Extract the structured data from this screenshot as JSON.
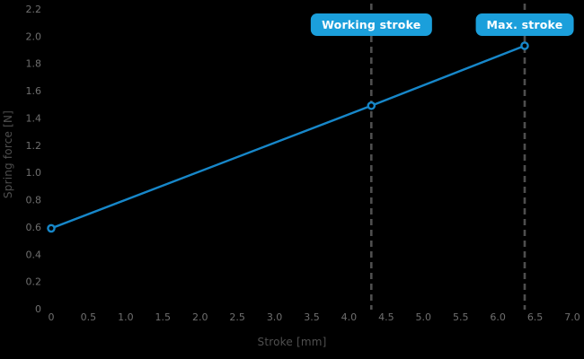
{
  "chart_data": {
    "type": "line",
    "title": "",
    "xlabel": "Stroke [mm]",
    "ylabel": "Spring force [N]",
    "xlim": [
      0,
      7.0
    ],
    "ylim": [
      0,
      2.2
    ],
    "grid": false,
    "background": "#000000",
    "x_tick_values": [
      0,
      0.5,
      1.0,
      1.5,
      2.0,
      2.5,
      3.0,
      3.5,
      4.0,
      4.5,
      5.0,
      5.5,
      6.0,
      6.5,
      7.0
    ],
    "x_tick_labels": [
      "0",
      "0.5",
      "1.0",
      "1.5",
      "2.0",
      "2.5",
      "3.0",
      "3.5",
      "4.0",
      "4.5",
      "5.0",
      "5.5",
      "6.0",
      "6.5",
      "7.0"
    ],
    "y_tick_values": [
      0,
      0.2,
      0.4,
      0.6,
      0.8,
      1.0,
      1.2,
      1.4,
      1.6,
      1.8,
      2.0,
      2.2
    ],
    "y_tick_labels": [
      "0",
      "0.2",
      "0.4",
      "0.6",
      "0.8",
      "1.0",
      "1.2",
      "1.4",
      "1.6",
      "1.8",
      "2.0",
      "2.2"
    ],
    "series": [
      {
        "name": "spring-force-line",
        "x": [
          0,
          4.3,
          6.36
        ],
        "y": [
          0.59,
          1.49,
          1.93
        ],
        "color": "#1787c9",
        "marker": "open-circle"
      }
    ],
    "annotations": [
      {
        "label": "Working stroke",
        "x": 4.3
      },
      {
        "label": "Max. stroke",
        "x": 6.36
      }
    ],
    "colors": {
      "accent_line": "#1787c9",
      "accent_box": "#1b9fdb",
      "dashed_line": "#4e4e4e",
      "tick_text": "#6f6f6f",
      "axis_label_text": "#4f4f4f",
      "marker_fill": "#000000",
      "annotation_text": "#ffffff"
    }
  }
}
